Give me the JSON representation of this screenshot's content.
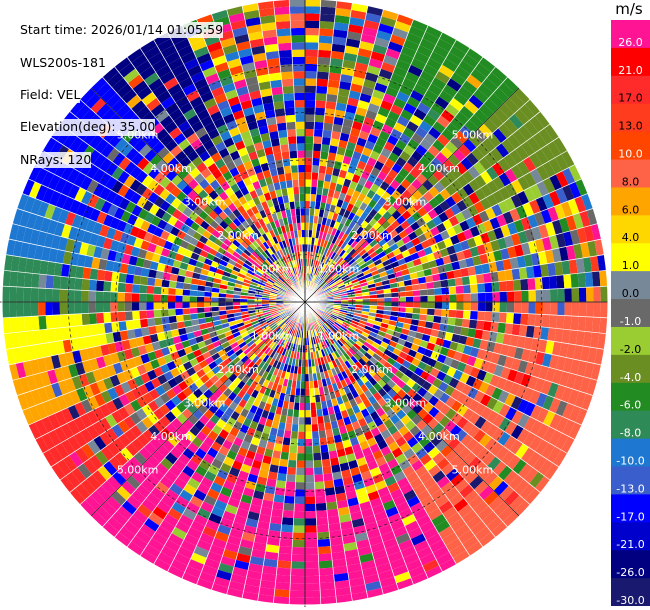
{
  "header": {
    "start_time": "Start time: 2026/01/14 01:05:59",
    "device": "WLS200s-181",
    "field": "Field: VEL",
    "elevation": "Elevation(deg): 35.00",
    "nrays": "NRays: 120"
  },
  "chart_data": {
    "type": "ppi-polar",
    "title": "",
    "field": "VEL",
    "units": "m/s",
    "rays": 120,
    "elevation_deg": 35.0,
    "range_rings_km": [
      1.0,
      2.0,
      3.0,
      4.0,
      5.0
    ],
    "ring_labels": [
      "1.00km",
      "2.00km",
      "3.00km",
      "4.00km",
      "5.00km"
    ],
    "max_range_km": 6.4,
    "colorbar": {
      "unit_label": "m/s",
      "tick_labels": [
        "26.0",
        "21.0",
        "17.0",
        "13.0",
        "10.0",
        "8.0",
        "6.0",
        "4.0",
        "1.0",
        "0.0",
        "-1.0",
        "-2.0",
        "-4.0",
        "-6.0",
        "-8.0",
        "-10.0",
        "-13.0",
        "-17.0",
        "-21.0",
        "-26.0",
        "-30.0"
      ],
      "colors": [
        "#ff1493",
        "#ff0000",
        "#ff2a2a",
        "#ff3c1e",
        "#ff4500",
        "#ff6347",
        "#ffa500",
        "#ffd700",
        "#ffff00",
        "#778899",
        "#696969",
        "#9acd32",
        "#6b8e23",
        "#228b22",
        "#2e8b57",
        "#1e78d2",
        "#3a5fcd",
        "#0000ff",
        "#0000cd",
        "#000080",
        "#191970"
      ]
    },
    "regions": [
      {
        "sector": "south",
        "dominant_value": 26.0
      },
      {
        "sector": "south-west",
        "dominant_value": 10.0
      },
      {
        "sector": "west",
        "dominant_value": -10.0
      },
      {
        "sector": "north-west",
        "dominant_value": -17.0
      },
      {
        "sector": "north-east",
        "dominant_value": -6.0
      },
      {
        "sector": "east",
        "dominant_value": 8.0
      }
    ]
  }
}
